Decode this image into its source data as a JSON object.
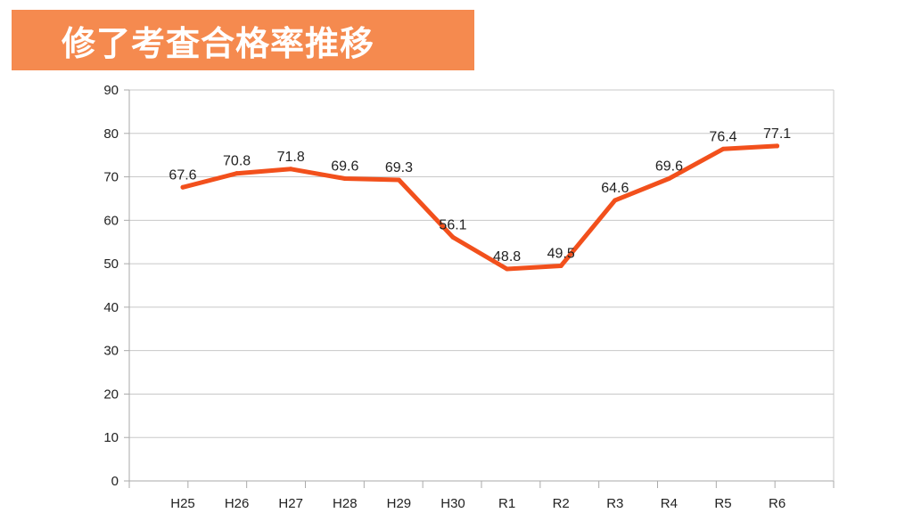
{
  "title": "修了考査合格率推移",
  "colors": {
    "title_background": "#f58a4f",
    "title_text": "#ffffff",
    "line": "#f2501c",
    "grid": "#c8c8c8"
  },
  "chart_data": {
    "type": "line",
    "title": "",
    "xlabel": "",
    "ylabel": "",
    "categories": [
      "H25",
      "H26",
      "H27",
      "H28",
      "H29",
      "H30",
      "R1",
      "R2",
      "R3",
      "R4",
      "R5",
      "R6"
    ],
    "series": [
      {
        "values": [
          67.6,
          70.8,
          71.8,
          69.6,
          69.3,
          56.1,
          48.8,
          49.5,
          64.6,
          69.6,
          76.4,
          77.1
        ]
      }
    ],
    "data_labels": [
      "67.6",
      "70.8",
      "71.8",
      "69.6",
      "69.3",
      "56.1",
      "48.8",
      "49.5",
      "64.6",
      "69.6",
      "76.4",
      "77.1"
    ],
    "ylim": [
      0,
      90
    ],
    "yticks": [
      0,
      10,
      20,
      30,
      40,
      50,
      60,
      70,
      80,
      90
    ],
    "grid": true,
    "legend": "none"
  }
}
